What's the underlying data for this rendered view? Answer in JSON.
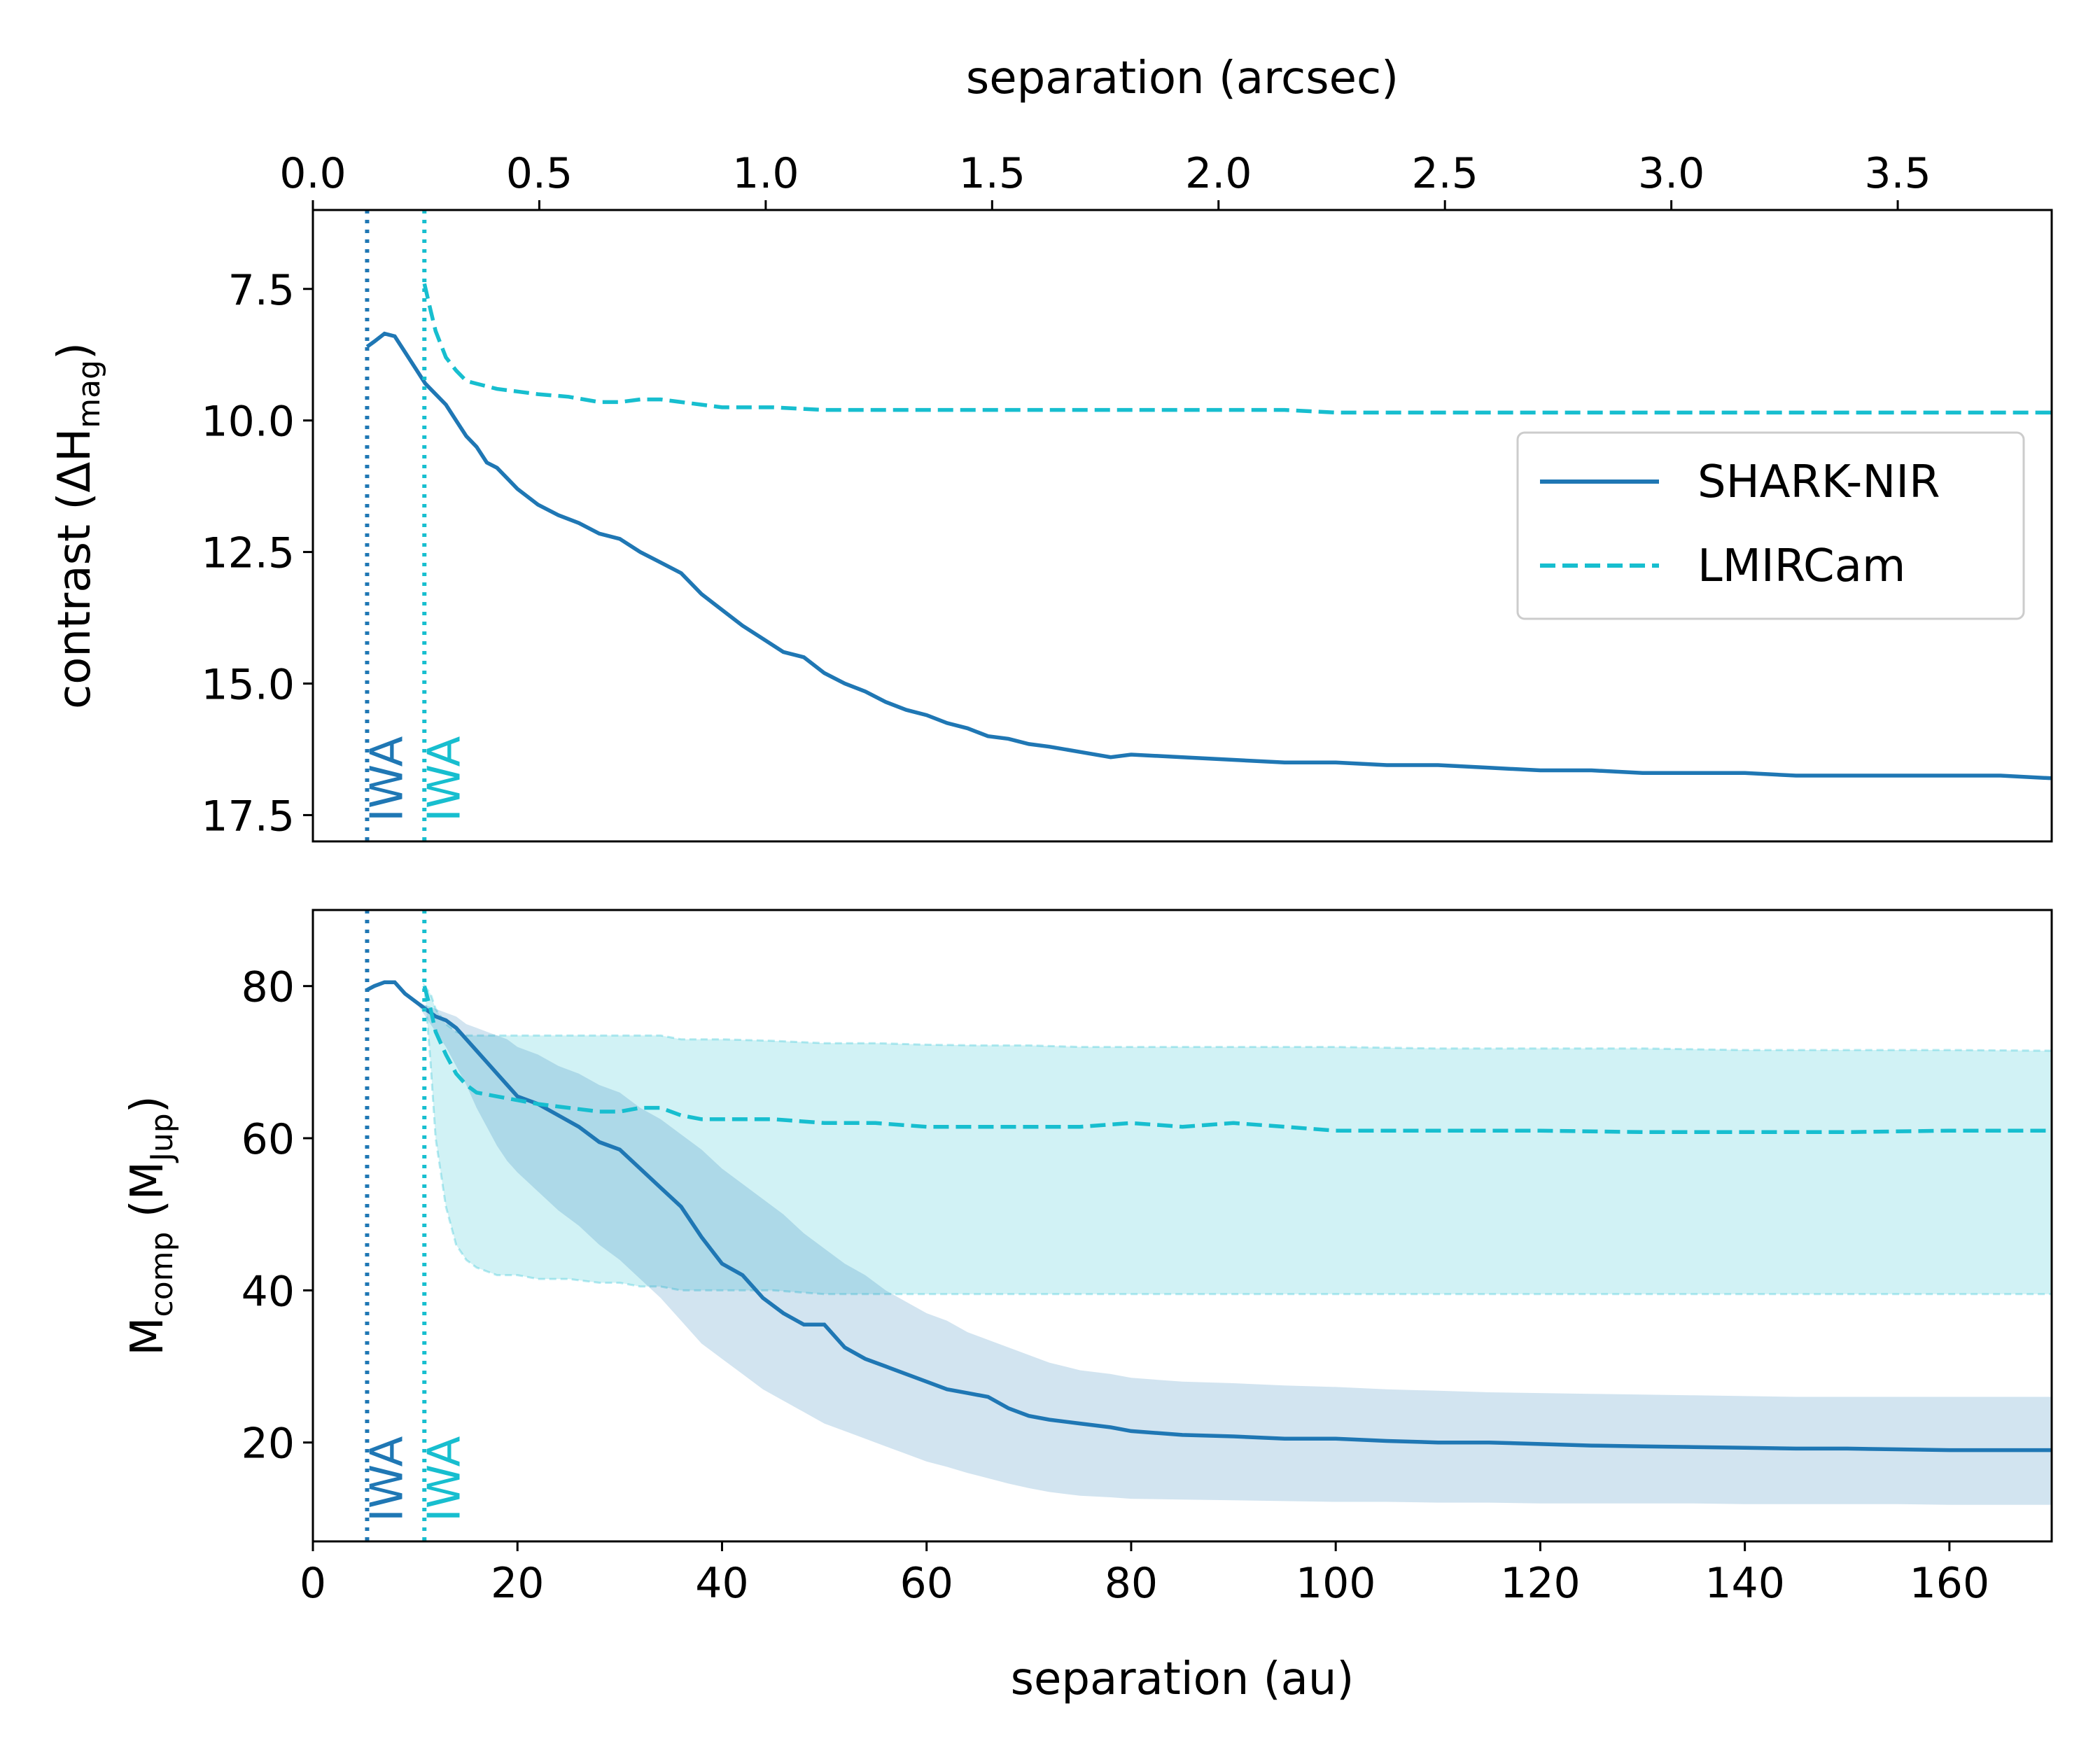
{
  "colors": {
    "shark": "#1f77b4",
    "lmircam": "#17becf",
    "shark_band": "#1f77b4",
    "lmircam_band": "#17becf"
  },
  "figure": {
    "top_axis_label": "separation (arcsec)",
    "bottom_axis_label": "separation (au)",
    "iwa_label": "IWA"
  },
  "chart_data": [
    {
      "type": "line",
      "panel": "top",
      "ylabel": "contrast (ΔH_mag)",
      "ylabel_main": "contrast (ΔH",
      "ylabel_sub": "mag",
      "ylabel_close": ")",
      "xlim": [
        0,
        170
      ],
      "ylim": [
        18.0,
        6.0
      ],
      "y_inverted": true,
      "yticks": [
        7.5,
        10.0,
        12.5,
        15.0,
        17.5
      ],
      "ytick_labels": [
        "7.5",
        "10.0",
        "12.5",
        "15.0",
        "17.5"
      ],
      "top_xticks_arcsec": [
        0.0,
        0.5,
        1.0,
        1.5,
        2.0,
        2.5,
        3.0,
        3.5
      ],
      "top_xtick_labels": [
        "0.0",
        "0.5",
        "1.0",
        "1.5",
        "2.0",
        "2.5",
        "3.0",
        "3.5"
      ],
      "top_xlim_arcsec": [
        0,
        3.84
      ],
      "iwa_lines": [
        {
          "x": 5.3,
          "series": "SHARK-NIR"
        },
        {
          "x": 10.9,
          "series": "LMIRCam"
        }
      ],
      "legend": {
        "position": "center-right",
        "entries": [
          "SHARK-NIR",
          "LMIRCam"
        ]
      },
      "series": [
        {
          "name": "SHARK-NIR",
          "style": "solid",
          "x": [
            5.3,
            6,
            7,
            8,
            9,
            10,
            11,
            12,
            13,
            14,
            15,
            16,
            17,
            18,
            19,
            20,
            22,
            24,
            26,
            28,
            30,
            32,
            34,
            36,
            38,
            40,
            42,
            44,
            46,
            48,
            50,
            52,
            54,
            56,
            58,
            60,
            62,
            64,
            66,
            68,
            70,
            72,
            75,
            78,
            80,
            85,
            90,
            95,
            100,
            105,
            110,
            115,
            120,
            125,
            130,
            135,
            140,
            145,
            150,
            155,
            160,
            165,
            170
          ],
          "y": [
            8.6,
            8.5,
            8.35,
            8.4,
            8.7,
            9.0,
            9.3,
            9.5,
            9.7,
            10.0,
            10.3,
            10.5,
            10.8,
            10.9,
            11.1,
            11.3,
            11.6,
            11.8,
            11.95,
            12.15,
            12.25,
            12.5,
            12.7,
            12.9,
            13.3,
            13.6,
            13.9,
            14.15,
            14.4,
            14.5,
            14.8,
            15.0,
            15.15,
            15.35,
            15.5,
            15.6,
            15.75,
            15.85,
            16.0,
            16.05,
            16.15,
            16.2,
            16.3,
            16.4,
            16.35,
            16.4,
            16.45,
            16.5,
            16.5,
            16.55,
            16.55,
            16.6,
            16.65,
            16.65,
            16.7,
            16.7,
            16.7,
            16.75,
            16.75,
            16.75,
            16.75,
            16.75,
            16.8
          ]
        },
        {
          "name": "LMIRCam",
          "style": "dashed",
          "x": [
            10.9,
            11.5,
            12,
            13,
            14,
            15,
            16,
            18,
            20,
            22,
            25,
            28,
            30,
            32,
            34,
            36,
            38,
            40,
            45,
            50,
            55,
            60,
            65,
            70,
            75,
            80,
            85,
            90,
            95,
            100,
            110,
            120,
            130,
            140,
            150,
            160,
            170
          ],
          "y": [
            7.4,
            7.9,
            8.3,
            8.8,
            9.05,
            9.25,
            9.3,
            9.4,
            9.45,
            9.5,
            9.55,
            9.65,
            9.65,
            9.6,
            9.6,
            9.65,
            9.7,
            9.75,
            9.75,
            9.8,
            9.8,
            9.8,
            9.8,
            9.8,
            9.8,
            9.8,
            9.8,
            9.8,
            9.8,
            9.85,
            9.85,
            9.85,
            9.85,
            9.85,
            9.85,
            9.85,
            9.85
          ]
        }
      ]
    },
    {
      "type": "area",
      "panel": "bottom",
      "ylabel": "M_comp (M_Jup)",
      "ylabel_main": "M",
      "ylabel_sub": "comp",
      "ylabel_mid": " (M",
      "ylabel_sub2": "Jup",
      "ylabel_close": ")",
      "xlabel": "separation (au)",
      "xlim": [
        0,
        170
      ],
      "ylim": [
        7,
        90
      ],
      "yticks": [
        20,
        40,
        60,
        80
      ],
      "ytick_labels": [
        "20",
        "40",
        "60",
        "80"
      ],
      "xticks": [
        0,
        20,
        40,
        60,
        80,
        100,
        120,
        140,
        160
      ],
      "xtick_labels": [
        "0",
        "20",
        "40",
        "60",
        "80",
        "100",
        "120",
        "140",
        "160"
      ],
      "iwa_lines": [
        {
          "x": 5.3,
          "series": "SHARK-NIR"
        },
        {
          "x": 10.9,
          "series": "LMIRCam"
        }
      ],
      "series": [
        {
          "name": "SHARK-NIR",
          "style": "solid",
          "x": [
            5.3,
            6,
            7,
            8,
            9,
            10,
            11,
            12,
            13,
            14,
            15,
            16,
            17,
            18,
            19,
            20,
            22,
            24,
            26,
            28,
            30,
            32,
            34,
            36,
            38,
            40,
            42,
            44,
            46,
            48,
            50,
            52,
            54,
            56,
            58,
            60,
            62,
            64,
            66,
            68,
            70,
            72,
            75,
            78,
            80,
            85,
            90,
            95,
            100,
            105,
            110,
            115,
            120,
            125,
            130,
            135,
            140,
            145,
            150,
            155,
            160,
            165,
            170
          ],
          "y": [
            79.5,
            80,
            80.5,
            80.5,
            79,
            78,
            77,
            76,
            75.5,
            74.5,
            73,
            71.5,
            70,
            68.5,
            67,
            65.5,
            64.5,
            63,
            61.5,
            59.5,
            58.5,
            56,
            53.5,
            51,
            47,
            43.5,
            42,
            39,
            37,
            35.5,
            35.5,
            32.5,
            31,
            30,
            29,
            28,
            27,
            26.5,
            26,
            24.5,
            23.5,
            23,
            22.5,
            22,
            21.5,
            21,
            20.8,
            20.5,
            20.5,
            20.2,
            20,
            20,
            19.8,
            19.6,
            19.5,
            19.4,
            19.3,
            19.2,
            19.2,
            19.1,
            19.0,
            19.0,
            19.0
          ],
          "lower": [
            79.5,
            80,
            80.5,
            80.5,
            79,
            78,
            76,
            74,
            72,
            69.5,
            67,
            64,
            61.5,
            59,
            57,
            55.5,
            53,
            50.5,
            48.5,
            46,
            44,
            41.5,
            39,
            36,
            33,
            31,
            29,
            27,
            25.5,
            24,
            22.5,
            21.5,
            20.5,
            19.5,
            18.5,
            17.5,
            16.8,
            16,
            15.3,
            14.6,
            14,
            13.5,
            13,
            12.8,
            12.6,
            12.5,
            12.4,
            12.3,
            12.2,
            12.2,
            12.1,
            12.1,
            12.0,
            12.0,
            12.0,
            12.0,
            11.9,
            11.9,
            11.9,
            11.9,
            11.8,
            11.8,
            11.8
          ],
          "upper": [
            79.5,
            80,
            80.5,
            80.5,
            79,
            78,
            77.5,
            77,
            76.5,
            76,
            75,
            74.5,
            74,
            73.5,
            73,
            72,
            71,
            69.5,
            68.5,
            67,
            66,
            64,
            62.5,
            60.5,
            58.5,
            56,
            54,
            52,
            50,
            47.5,
            45.5,
            43.5,
            42,
            40,
            38.5,
            37,
            36,
            34.5,
            33.5,
            32.5,
            31.5,
            30.5,
            29.5,
            29,
            28.5,
            28,
            27.8,
            27.5,
            27.3,
            27,
            26.8,
            26.6,
            26.5,
            26.4,
            26.3,
            26.2,
            26.1,
            26.0,
            26.0,
            26.0,
            26.0,
            26.0,
            26.0
          ]
        },
        {
          "name": "LMIRCam",
          "style": "dashed",
          "x": [
            10.9,
            11.5,
            12,
            13,
            14,
            15,
            16,
            18,
            20,
            22,
            25,
            28,
            30,
            32,
            34,
            36,
            38,
            40,
            45,
            50,
            55,
            60,
            65,
            70,
            75,
            80,
            85,
            90,
            95,
            100,
            110,
            120,
            130,
            140,
            150,
            160,
            170
          ],
          "y": [
            80,
            77,
            74,
            71,
            68.5,
            67,
            66,
            65.5,
            65,
            64.5,
            64,
            63.5,
            63.5,
            64,
            64,
            63,
            62.5,
            62.5,
            62.5,
            62,
            62,
            61.5,
            61.5,
            61.5,
            61.5,
            62,
            61.5,
            62,
            61.5,
            61,
            61,
            61,
            60.8,
            60.8,
            60.8,
            61,
            61
          ],
          "lower": [
            80,
            70,
            60,
            51,
            46,
            44,
            43,
            42,
            42,
            41.5,
            41.5,
            41,
            41,
            40.5,
            40.5,
            40,
            40,
            40,
            40,
            39.5,
            39.5,
            39.5,
            39.5,
            39.5,
            39.5,
            39.5,
            39.5,
            39.5,
            39.5,
            39.5,
            39.5,
            39.5,
            39.5,
            39.5,
            39.5,
            39.5,
            39.5
          ],
          "upper": [
            80,
            79,
            77,
            75,
            74,
            73.5,
            73.5,
            73.5,
            73.5,
            73.5,
            73.5,
            73.5,
            73.5,
            73.5,
            73.5,
            73,
            73,
            73,
            72.8,
            72.5,
            72.5,
            72.3,
            72.2,
            72.2,
            72,
            72,
            72,
            72,
            72,
            72,
            71.8,
            71.8,
            71.8,
            71.6,
            71.6,
            71.6,
            71.5
          ]
        }
      ]
    }
  ]
}
